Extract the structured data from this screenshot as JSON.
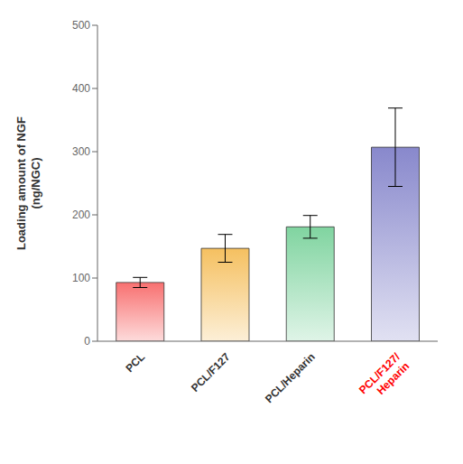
{
  "chart_data": {
    "type": "bar",
    "categories": [
      "PCL",
      "PCL/F127",
      "PCL/Heparin",
      "PCL/F127/\nHeparin"
    ],
    "values": [
      93,
      147,
      181,
      307
    ],
    "errors": [
      8,
      22,
      18,
      62
    ],
    "ylabel": "Loading amount of NGF\n(ng/NGC)",
    "ylim": [
      0,
      500
    ],
    "yticks": [
      0,
      100,
      200,
      300,
      400,
      500
    ],
    "colors": [
      "#F87070",
      "#F5C060",
      "#80D4A0",
      "#8888CC"
    ],
    "grid": false
  }
}
